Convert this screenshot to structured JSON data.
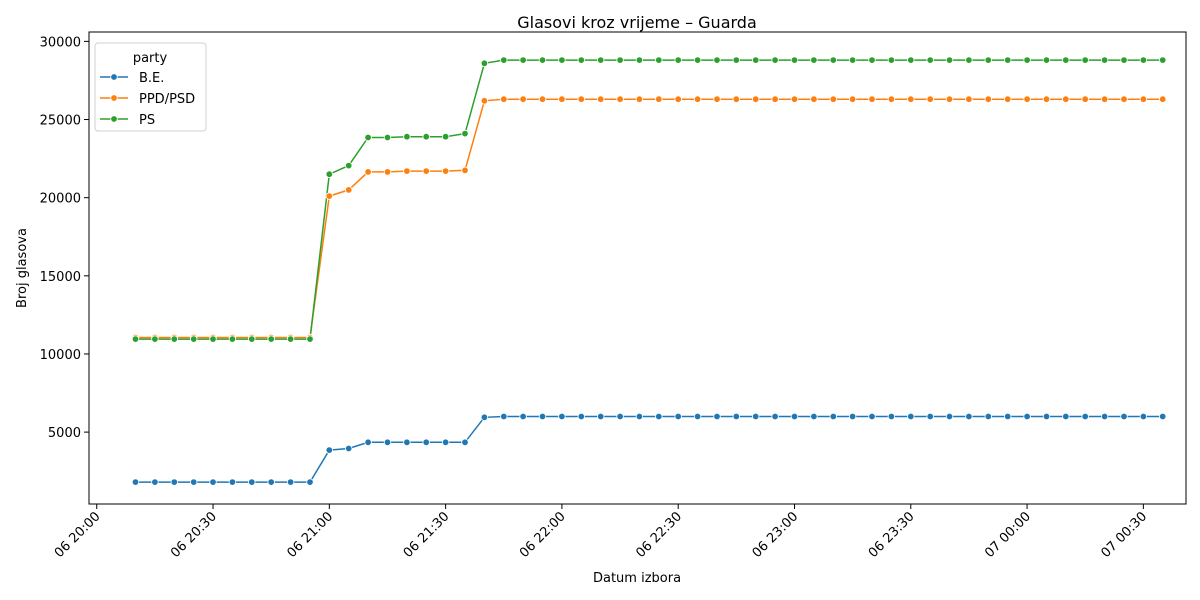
{
  "chart_data": {
    "type": "line",
    "title": "Glasovi kroz vrijeme – Guarda",
    "xlabel": "Datum izbora",
    "ylabel": "Broj glasova",
    "x_tick_labels": [
      "06 20:00",
      "06 20:30",
      "06 21:00",
      "06 21:30",
      "06 22:00",
      "06 22:30",
      "06 23:00",
      "06 23:30",
      "07 00:00",
      "07 00:30"
    ],
    "y_tick_labels": [
      "5000",
      "10000",
      "15000",
      "20000",
      "25000",
      "30000"
    ],
    "y_ticks": [
      5000,
      10000,
      15000,
      20000,
      25000,
      30000
    ],
    "ylim": [
      400,
      30600
    ],
    "xlim": [
      "06 19:58",
      "07 00:41"
    ],
    "legend_title": "party",
    "legend_position": "upper-left",
    "grid": false,
    "x": [
      "06 20:10",
      "06 20:15",
      "06 20:20",
      "06 20:25",
      "06 20:30",
      "06 20:35",
      "06 20:40",
      "06 20:45",
      "06 20:50",
      "06 20:55",
      "06 21:00",
      "06 21:05",
      "06 21:10",
      "06 21:15",
      "06 21:20",
      "06 21:25",
      "06 21:30",
      "06 21:35",
      "06 21:40",
      "06 21:45",
      "06 21:50",
      "06 21:55",
      "06 22:00",
      "06 22:05",
      "06 22:10",
      "06 22:15",
      "06 22:20",
      "06 22:25",
      "06 22:30",
      "06 22:35",
      "06 22:40",
      "06 22:45",
      "06 22:50",
      "06 22:55",
      "06 23:00",
      "06 23:05",
      "06 23:10",
      "06 23:15",
      "06 23:20",
      "06 23:25",
      "06 23:30",
      "06 23:35",
      "06 23:40",
      "06 23:45",
      "06 23:50",
      "06 23:55",
      "07 00:00",
      "07 00:05",
      "07 00:10",
      "07 00:15",
      "07 00:20",
      "07 00:25",
      "07 00:30",
      "07 00:35"
    ],
    "series": [
      {
        "name": "B.E.",
        "color": "#1f77b4",
        "values": [
          1800,
          1800,
          1800,
          1800,
          1800,
          1800,
          1800,
          1800,
          1800,
          1800,
          3850,
          3950,
          4350,
          4350,
          4350,
          4350,
          4350,
          4350,
          5950,
          6000,
          6000,
          6000,
          6000,
          6000,
          6000,
          6000,
          6000,
          6000,
          6000,
          6000,
          6000,
          6000,
          6000,
          6000,
          6000,
          6000,
          6000,
          6000,
          6000,
          6000,
          6000,
          6000,
          6000,
          6000,
          6000,
          6000,
          6000,
          6000,
          6000,
          6000,
          6000,
          6000,
          6000,
          6000
        ]
      },
      {
        "name": "PPD/PSD",
        "color": "#ff7f0e",
        "values": [
          11050,
          11050,
          11050,
          11050,
          11050,
          11050,
          11050,
          11050,
          11050,
          11050,
          20100,
          20500,
          21650,
          21650,
          21700,
          21700,
          21700,
          21750,
          26200,
          26300,
          26300,
          26300,
          26300,
          26300,
          26300,
          26300,
          26300,
          26300,
          26300,
          26300,
          26300,
          26300,
          26300,
          26300,
          26300,
          26300,
          26300,
          26300,
          26300,
          26300,
          26300,
          26300,
          26300,
          26300,
          26300,
          26300,
          26300,
          26300,
          26300,
          26300,
          26300,
          26300,
          26300,
          26300
        ]
      },
      {
        "name": "PS",
        "color": "#2ca02c",
        "values": [
          10950,
          10950,
          10950,
          10950,
          10950,
          10950,
          10950,
          10950,
          10950,
          10950,
          21500,
          22050,
          23850,
          23850,
          23900,
          23900,
          23900,
          24100,
          28600,
          28800,
          28800,
          28800,
          28800,
          28800,
          28800,
          28800,
          28800,
          28800,
          28800,
          28800,
          28800,
          28800,
          28800,
          28800,
          28800,
          28800,
          28800,
          28800,
          28800,
          28800,
          28800,
          28800,
          28800,
          28800,
          28800,
          28800,
          28800,
          28800,
          28800,
          28800,
          28800,
          28800,
          28800,
          28800
        ]
      }
    ]
  }
}
